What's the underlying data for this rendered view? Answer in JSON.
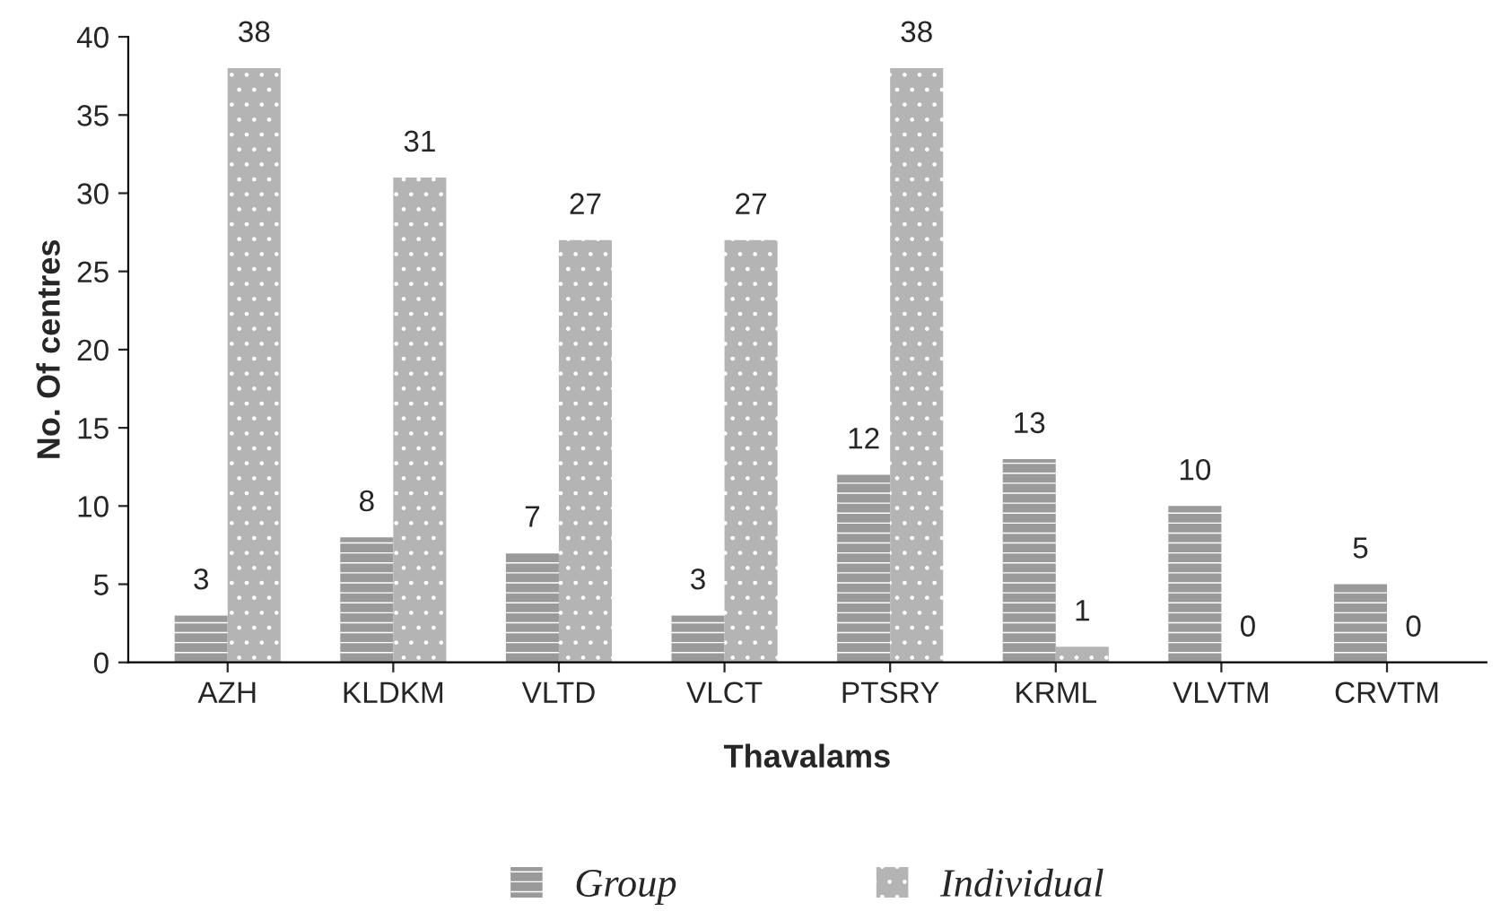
{
  "chart_data": {
    "type": "bar",
    "xlabel": "Thavalams",
    "ylabel": "No. Of centres",
    "categories": [
      "AZH",
      "KLDKM",
      "VLTD",
      "VLCT",
      "PTSRY",
      "KRML",
      "VLVTM",
      "CRVTM"
    ],
    "series": [
      {
        "name": "Group",
        "color": "#9a9a9a",
        "values": [
          3,
          8,
          7,
          3,
          12,
          13,
          10,
          5
        ]
      },
      {
        "name": "Individual",
        "color": "#b4b4b4",
        "values": [
          38,
          31,
          27,
          27,
          38,
          1,
          0,
          0
        ]
      }
    ],
    "ylim": [
      0,
      40
    ],
    "yticks": [
      0,
      5,
      10,
      15,
      20,
      25,
      30,
      35,
      40
    ],
    "data_labels": true,
    "grid": false,
    "legend": "bottom"
  }
}
